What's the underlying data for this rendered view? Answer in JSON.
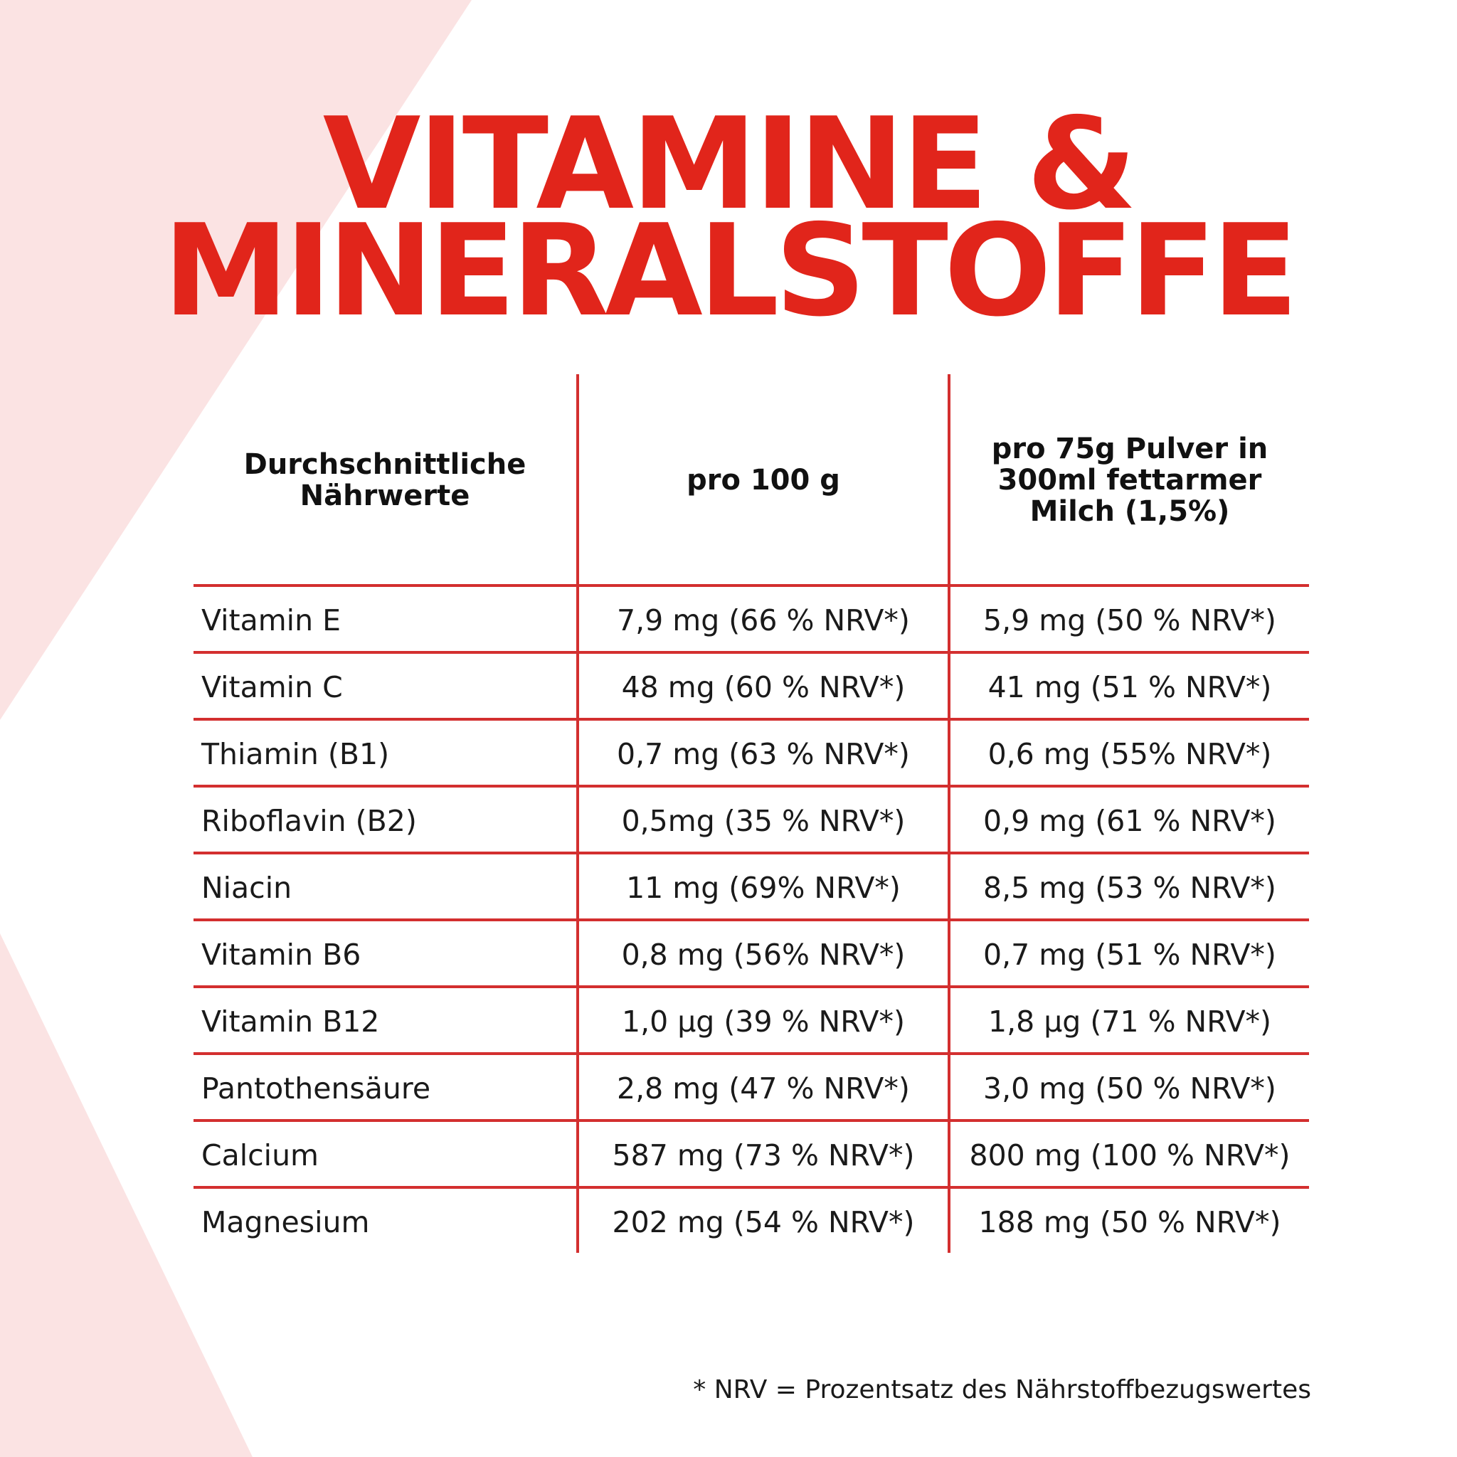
{
  "title": {
    "line1": "VITAMINE &",
    "line2": "MINERALSTOFFE"
  },
  "colors": {
    "accent": "#e1251b",
    "lines": "#d32f2f",
    "background_shape": "#fbe3e3"
  },
  "table": {
    "headers": {
      "name_col_line1": "Durchschnittliche",
      "name_col_line2": "Nährwerte",
      "per100": "pro 100 g",
      "per75_line1": "pro 75g Pulver in",
      "per75_line2": "300ml fettarmer",
      "per75_line3": "Milch (1,5%)"
    },
    "rows": [
      {
        "name": "Vitamin E",
        "per100": "7,9 mg (66 % NRV*)",
        "per75": "5,9 mg (50 % NRV*)"
      },
      {
        "name": "Vitamin C",
        "per100": "48 mg (60 % NRV*)",
        "per75": "41 mg (51 % NRV*)"
      },
      {
        "name": "Thiamin (B1)",
        "per100": "0,7 mg (63 % NRV*)",
        "per75": "0,6 mg (55% NRV*)"
      },
      {
        "name": "Riboflavin (B2)",
        "per100": "0,5mg (35 % NRV*)",
        "per75": "0,9 mg (61 % NRV*)"
      },
      {
        "name": "Niacin",
        "per100": "11 mg (69% NRV*)",
        "per75": "8,5 mg (53 % NRV*)"
      },
      {
        "name": "Vitamin B6",
        "per100": "0,8 mg (56% NRV*)",
        "per75": "0,7 mg (51 % NRV*)"
      },
      {
        "name": "Vitamin B12",
        "per100": "1,0 µg (39 % NRV*)",
        "per75": "1,8 µg (71 % NRV*)"
      },
      {
        "name": "Pantothensäure",
        "per100": "2,8 mg (47 % NRV*)",
        "per75": "3,0 mg (50 % NRV*)"
      },
      {
        "name": "Calcium",
        "per100": "587 mg (73 % NRV*)",
        "per75": "800 mg (100 % NRV*)"
      },
      {
        "name": "Magnesium",
        "per100": "202 mg (54 % NRV*)",
        "per75": "188 mg (50 % NRV*)"
      }
    ]
  },
  "footnote": "*  NRV = Prozentsatz des Nährstoffbezugswertes"
}
